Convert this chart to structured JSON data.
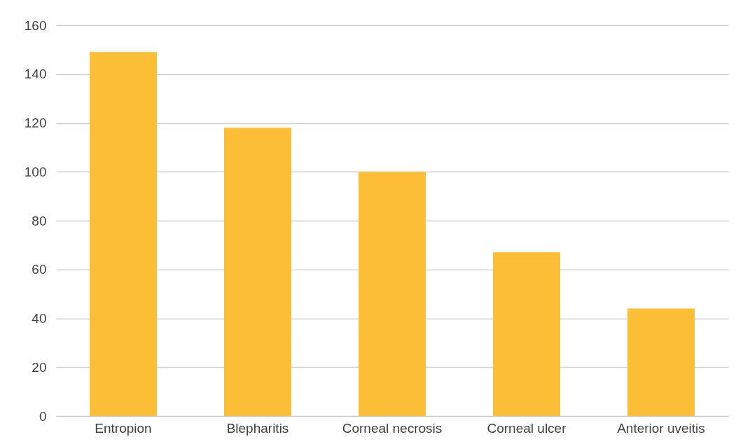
{
  "chart_data": {
    "type": "bar",
    "categories": [
      "Entropion",
      "Blepharitis",
      "Corneal necrosis",
      "Corneal ulcer",
      "Anterior uveitis"
    ],
    "values": [
      149,
      118,
      100,
      67,
      44
    ],
    "color": "#fbbe36",
    "ylim": [
      0,
      160
    ],
    "yticks": [
      0,
      20,
      40,
      60,
      80,
      100,
      120,
      140,
      160
    ],
    "grid": "y"
  }
}
